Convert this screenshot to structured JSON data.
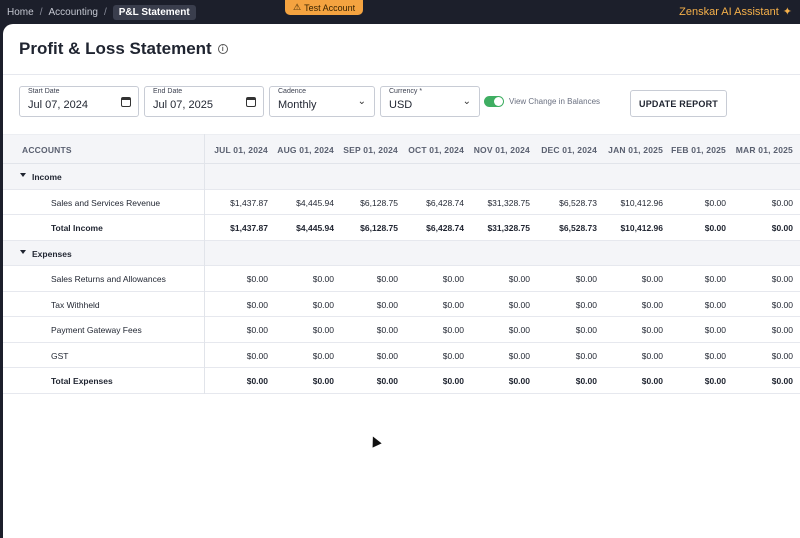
{
  "breadcrumb": {
    "items": [
      "Home",
      "Accounting"
    ],
    "current": "P&L Statement"
  },
  "test_badge": "Test Account",
  "assistant": "Zenskar AI Assistant",
  "page": {
    "title": "Profit & Loss Statement"
  },
  "filters": {
    "start_date": {
      "label": "Start Date",
      "value": "Jul 07, 2024"
    },
    "end_date": {
      "label": "End Date",
      "value": "Jul 07, 2025"
    },
    "cadence": {
      "label": "Cadence",
      "value": "Monthly"
    },
    "currency": {
      "label": "Currency *",
      "value": "USD"
    },
    "view_change": {
      "label": "View Change in Balances",
      "on": true
    },
    "update_button": "UPDATE REPORT"
  },
  "table": {
    "accounts_header": "ACCOUNTS",
    "columns": [
      "JUL 01, 2024",
      "AUG 01, 2024",
      "SEP 01, 2024",
      "OCT 01, 2024",
      "NOV 01, 2024",
      "DEC 01, 2024",
      "JAN 01, 2025",
      "FEB 01, 2025",
      "MAR 01, 2025"
    ],
    "rows": [
      {
        "type": "group",
        "name": "Income"
      },
      {
        "type": "item",
        "name": "Sales and Services Revenue",
        "values": [
          "$1,437.87",
          "$4,445.94",
          "$6,128.75",
          "$6,428.74",
          "$31,328.75",
          "$6,528.73",
          "$10,412.96",
          "$0.00",
          "$0.00"
        ]
      },
      {
        "type": "total",
        "name": "Total Income",
        "values": [
          "$1,437.87",
          "$4,445.94",
          "$6,128.75",
          "$6,428.74",
          "$31,328.75",
          "$6,528.73",
          "$10,412.96",
          "$0.00",
          "$0.00"
        ]
      },
      {
        "type": "group",
        "name": "Expenses"
      },
      {
        "type": "item",
        "name": "Sales Returns and Allowances",
        "values": [
          "$0.00",
          "$0.00",
          "$0.00",
          "$0.00",
          "$0.00",
          "$0.00",
          "$0.00",
          "$0.00",
          "$0.00"
        ]
      },
      {
        "type": "item",
        "name": "Tax Withheld",
        "values": [
          "$0.00",
          "$0.00",
          "$0.00",
          "$0.00",
          "$0.00",
          "$0.00",
          "$0.00",
          "$0.00",
          "$0.00"
        ]
      },
      {
        "type": "item",
        "name": "Payment Gateway Fees",
        "values": [
          "$0.00",
          "$0.00",
          "$0.00",
          "$0.00",
          "$0.00",
          "$0.00",
          "$0.00",
          "$0.00",
          "$0.00"
        ]
      },
      {
        "type": "item",
        "name": "GST",
        "values": [
          "$0.00",
          "$0.00",
          "$0.00",
          "$0.00",
          "$0.00",
          "$0.00",
          "$0.00",
          "$0.00",
          "$0.00"
        ]
      },
      {
        "type": "total",
        "name": "Total Expenses",
        "values": [
          "$0.00",
          "$0.00",
          "$0.00",
          "$0.00",
          "$0.00",
          "$0.00",
          "$0.00",
          "$0.00",
          "$0.00"
        ]
      }
    ]
  },
  "colors": {
    "accent_green": "#3fae62",
    "badge_orange": "#f4a340",
    "assistant_orange": "#f5b04a"
  },
  "icons": {
    "calendar": "calendar-icon",
    "chevron": "chevron-down-icon",
    "info": "info-icon",
    "sparkle": "sparkle-icon",
    "warning": "warning-icon"
  }
}
